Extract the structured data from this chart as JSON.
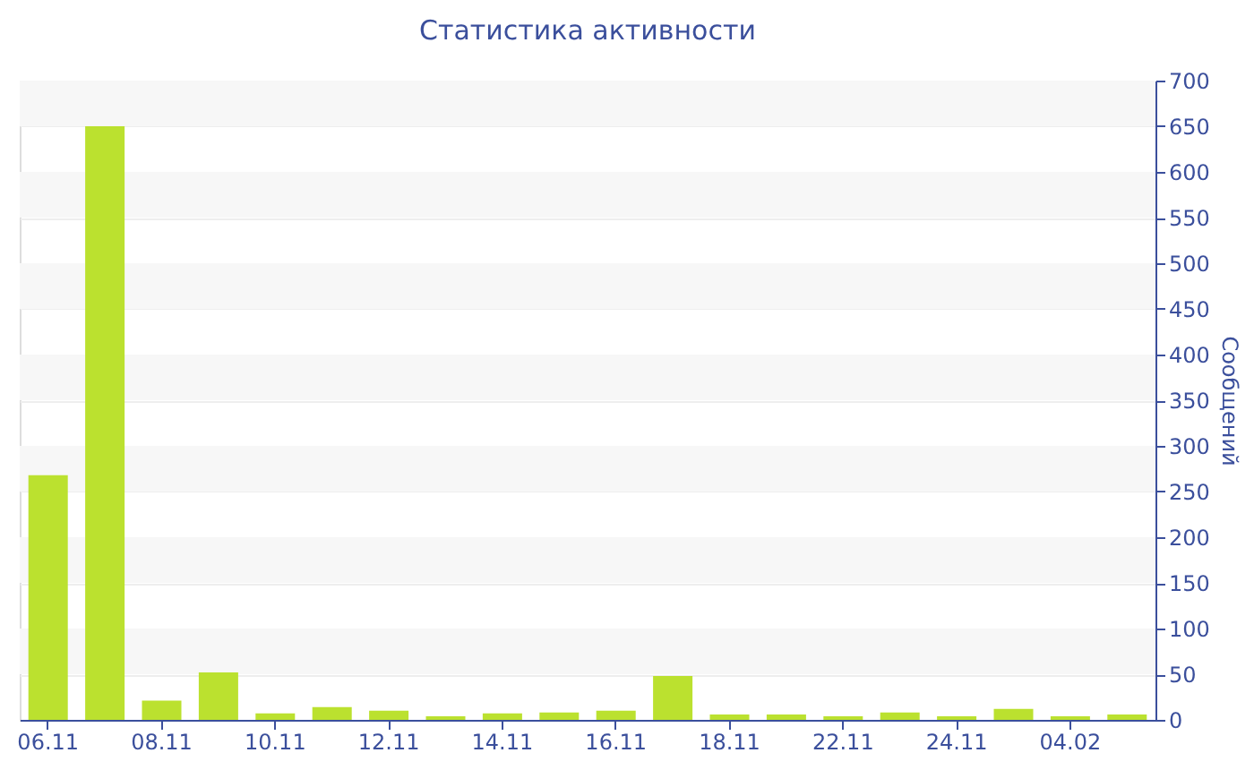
{
  "chart_data": {
    "type": "bar",
    "title": "Статистика активности",
    "ylabel": "Сообщений",
    "categories": [
      "06.11",
      null,
      "08.11",
      null,
      "10.11",
      null,
      "12.11",
      null,
      "14.11",
      null,
      "16.11",
      null,
      "18.11",
      null,
      "22.11",
      null,
      "24.11",
      null,
      "04.02",
      null
    ],
    "values": [
      268,
      650,
      21,
      52,
      7,
      14,
      10,
      4,
      7,
      8,
      10,
      48,
      6,
      6,
      4,
      8,
      4,
      12,
      4,
      6
    ],
    "color": "#bbe12f",
    "ylim": [
      0,
      700
    ],
    "yticks": [
      0,
      50,
      100,
      150,
      200,
      250,
      300,
      350,
      400,
      450,
      500,
      550,
      600,
      650,
      700
    ],
    "grid": "y"
  }
}
